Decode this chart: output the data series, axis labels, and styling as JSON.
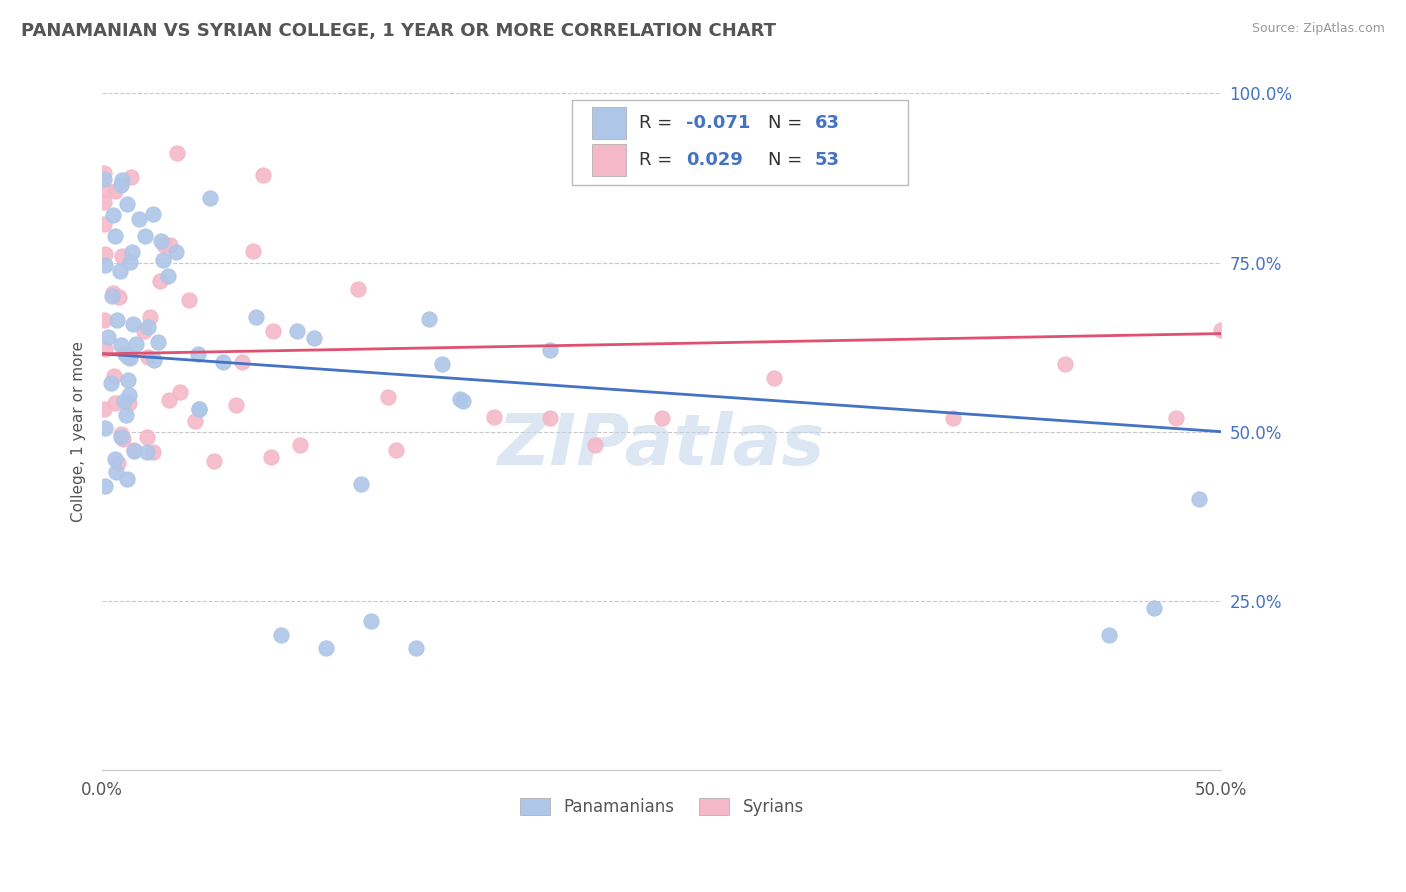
{
  "title": "PANAMANIAN VS SYRIAN COLLEGE, 1 YEAR OR MORE CORRELATION CHART",
  "source": "Source: ZipAtlas.com",
  "ylabel": "College, 1 year or more",
  "xlim": [
    0.0,
    0.5
  ],
  "ylim": [
    0.0,
    1.0
  ],
  "xtick_vals": [
    0.0,
    0.5
  ],
  "xtick_labels": [
    "0.0%",
    "50.0%"
  ],
  "ytick_vals": [
    0.25,
    0.5,
    0.75,
    1.0
  ],
  "ytick_labels": [
    "25.0%",
    "50.0%",
    "75.0%",
    "100.0%"
  ],
  "blue_color": "#aec6e8",
  "pink_color": "#f4b8c8",
  "blue_line_color": "#4472c4",
  "pink_line_color": "#e05070",
  "watermark": "ZIPatlas",
  "legend_r_blue": "-0.071",
  "legend_n_blue": "63",
  "legend_r_pink": "0.029",
  "legend_n_pink": "53",
  "background_color": "#ffffff",
  "grid_color": "#c8c8c8",
  "blue_trend_x0": 0.0,
  "blue_trend_y0": 0.615,
  "blue_trend_x1": 0.5,
  "blue_trend_y1": 0.5,
  "pink_trend_x0": 0.0,
  "pink_trend_y0": 0.615,
  "pink_trend_x1": 0.5,
  "pink_trend_y1": 0.645
}
